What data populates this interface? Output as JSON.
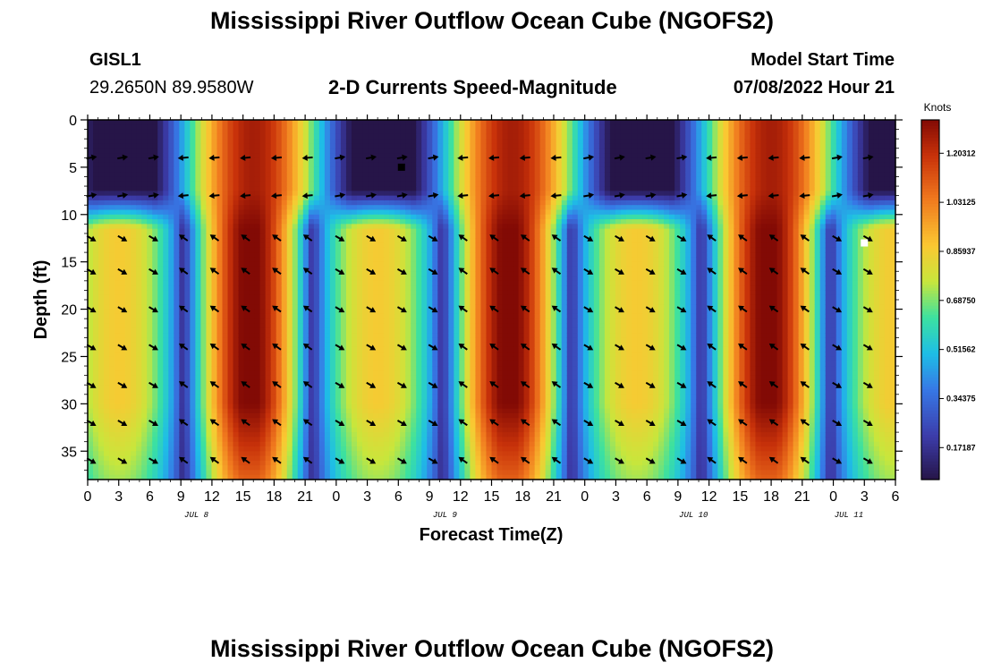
{
  "chart_data": {
    "type": "heatmap",
    "title": "Mississippi River Outflow Ocean Cube (NGOFS2)",
    "station": "GISL1",
    "location": "29.2650N  89.9580W",
    "subtitle": "2-D Currents Speed-Magnitude",
    "model_start_label": "Model Start Time",
    "model_start": "07/08/2022 Hour 21",
    "xlabel": "Forecast Time(Z)",
    "ylabel": "Depth (ft)",
    "x_tick_labels": [
      "0",
      "3",
      "6",
      "9",
      "12",
      "15",
      "18",
      "21",
      "0",
      "3",
      "6",
      "9",
      "12",
      "15",
      "18",
      "21",
      "0",
      "3",
      "6",
      "9",
      "12",
      "15",
      "18",
      "21",
      "0",
      "3",
      "6"
    ],
    "date_labels": [
      {
        "label": "JUL 8",
        "tick_index": 3.5
      },
      {
        "label": "JUL 9",
        "tick_index": 11.5
      },
      {
        "label": "JUL 10",
        "tick_index": 19.5
      },
      {
        "label": "JUL 11",
        "tick_index": 24.5
      }
    ],
    "y_tick_labels": [
      "0",
      "5",
      "10",
      "15",
      "20",
      "25",
      "30",
      "35"
    ],
    "ylim": [
      0,
      38
    ],
    "xlim_hours": [
      0,
      78
    ],
    "colorbar": {
      "label": "Knots",
      "min": 0.06,
      "max": 1.32,
      "tick_values": [
        0.171875,
        0.34375,
        0.515625,
        0.6875,
        0.859375,
        1.03125,
        1.203125
      ],
      "tick_labels": [
        "0.17187",
        "0.34375",
        "0.51562",
        "0.68750",
        "0.85937",
        "1.03125",
        "1.20312"
      ]
    },
    "arrow_depths_ft": [
      4,
      8,
      12.5,
      16,
      20,
      24,
      28,
      32,
      36
    ],
    "arrow_hours": [
      0.3,
      3.3,
      6.3,
      9.3,
      12.3,
      15.3,
      18.3,
      21.3,
      24.3,
      27.3,
      30.3,
      33.3,
      36.3,
      39.3,
      42.3,
      45.3,
      48.3,
      51.3,
      54.3,
      57.3,
      60.3,
      63.3,
      66.3,
      69.3,
      72.3,
      75.3
    ],
    "markers": [
      {
        "hour": 30.3,
        "depth_ft": 5,
        "color": "#000000"
      },
      {
        "hour": 75.0,
        "depth_ft": 13,
        "color": "#ffffff"
      }
    ]
  },
  "footer_title": "Mississippi River Outflow Ocean Cube (NGOFS2)"
}
